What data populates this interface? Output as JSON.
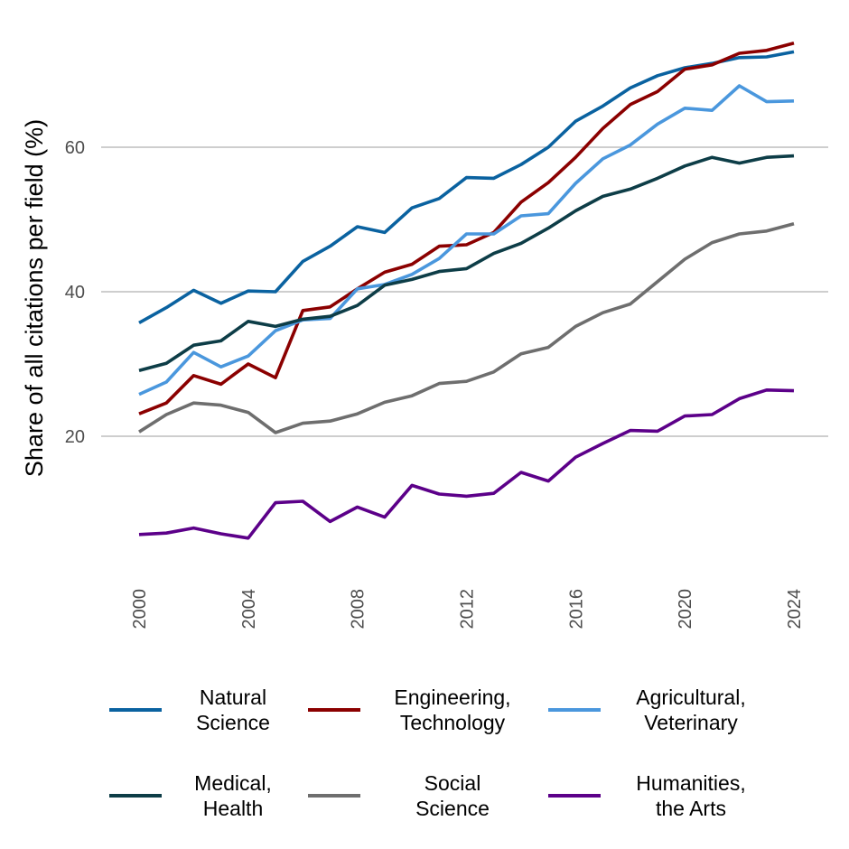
{
  "chart_data": {
    "type": "line",
    "title": "",
    "xlabel": "",
    "ylabel": "Share of all citations per field (%)",
    "xlim": [
      2000,
      2024
    ],
    "ylim": [
      0,
      75
    ],
    "yticks": [
      20,
      40,
      60
    ],
    "xticks": [
      2000,
      2004,
      2008,
      2012,
      2016,
      2020,
      2024
    ],
    "grid": "horizontal",
    "legend_position": "bottom",
    "x": [
      2000,
      2001,
      2002,
      2003,
      2004,
      2005,
      2006,
      2007,
      2008,
      2009,
      2010,
      2011,
      2012,
      2013,
      2014,
      2015,
      2016,
      2017,
      2018,
      2019,
      2020,
      2021,
      2022,
      2023,
      2024
    ],
    "series": [
      {
        "name": "Natural Science",
        "label_lines": [
          "Natural",
          "Science"
        ],
        "color": "#0a62a0",
        "values": [
          35.7,
          37.8,
          40.2,
          38.4,
          40.1,
          40.0,
          44.2,
          46.3,
          49.0,
          48.2,
          51.6,
          52.9,
          55.8,
          55.7,
          57.6,
          60.0,
          63.6,
          65.7,
          68.2,
          69.9,
          71.0,
          71.6,
          72.4,
          72.5,
          73.2
        ]
      },
      {
        "name": "Engineering, Technology",
        "label_lines": [
          "Engineering,",
          "Technology"
        ],
        "color": "#8b0000",
        "values": [
          23.1,
          24.6,
          28.4,
          27.2,
          30.0,
          28.1,
          37.4,
          37.9,
          40.4,
          42.7,
          43.8,
          46.3,
          46.5,
          48.2,
          52.4,
          55.1,
          58.6,
          62.6,
          65.9,
          67.7,
          70.8,
          71.4,
          73.0,
          73.4,
          74.4
        ]
      },
      {
        "name": "Agricultural, Veterinary",
        "label_lines": [
          "Agricultural,",
          "Veterinary"
        ],
        "color": "#4a97dd",
        "values": [
          25.8,
          27.5,
          31.6,
          29.6,
          31.1,
          34.6,
          36.1,
          36.3,
          40.4,
          41.0,
          42.4,
          44.6,
          48.0,
          48.0,
          50.5,
          50.8,
          55.0,
          58.4,
          60.3,
          63.2,
          65.4,
          65.1,
          68.5,
          66.3,
          66.4
        ]
      },
      {
        "name": "Medical, Health",
        "label_lines": [
          "Medical,",
          "Health"
        ],
        "color": "#0d3d47",
        "values": [
          29.1,
          30.1,
          32.6,
          33.2,
          35.9,
          35.2,
          36.2,
          36.6,
          38.1,
          40.9,
          41.7,
          42.8,
          43.2,
          45.3,
          46.7,
          48.8,
          51.2,
          53.2,
          54.2,
          55.7,
          57.4,
          58.6,
          57.8,
          58.6,
          58.8
        ]
      },
      {
        "name": "Social Science",
        "label_lines": [
          "Social",
          "Science"
        ],
        "color": "#6e6e6e",
        "values": [
          20.6,
          23.0,
          24.6,
          24.3,
          23.3,
          20.5,
          21.8,
          22.1,
          23.1,
          24.7,
          25.6,
          27.3,
          27.6,
          28.9,
          31.4,
          32.3,
          35.2,
          37.1,
          38.3,
          41.4,
          44.5,
          46.8,
          48.0,
          48.4,
          49.4
        ]
      },
      {
        "name": "Humanities, the Arts",
        "label_lines": [
          "Humanities,",
          "the Arts"
        ],
        "color": "#5c0089",
        "values": [
          6.4,
          6.6,
          7.3,
          6.5,
          5.9,
          10.8,
          11.0,
          8.2,
          10.2,
          8.8,
          13.2,
          12.0,
          11.7,
          12.1,
          15.0,
          13.8,
          17.1,
          19.0,
          20.8,
          20.7,
          22.8,
          23.0,
          25.2,
          26.4,
          26.3
        ]
      }
    ]
  }
}
